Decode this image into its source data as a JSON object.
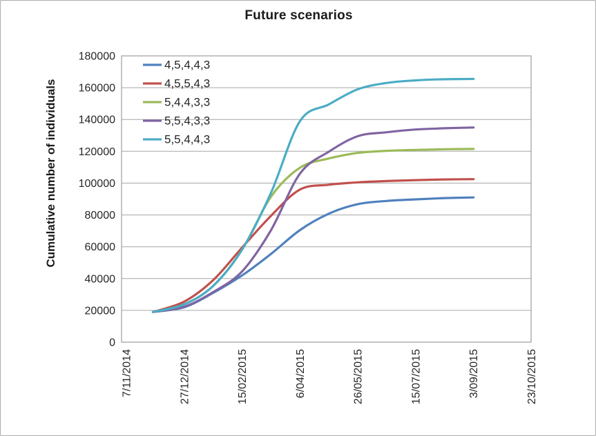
{
  "chart_data": {
    "type": "line",
    "title": "Future scenarios",
    "xlabel": "",
    "ylabel": "Cumulative number of individuals",
    "grid": true,
    "legend_position": "top-left-inside",
    "ylim": [
      0,
      180000
    ],
    "y_ticks": [
      0,
      20000,
      40000,
      60000,
      80000,
      100000,
      120000,
      140000,
      160000,
      180000
    ],
    "x_tick_labels": [
      "7/11/2014",
      "27/12/2014",
      "15/02/2015",
      "6/04/2015",
      "26/05/2015",
      "15/07/2015",
      "3/09/2015",
      "23/10/2015"
    ],
    "x_tick_days": [
      0,
      50,
      100,
      150,
      200,
      250,
      300,
      350
    ],
    "x_unit": "days since 7/11/2014 (ticks every 50 days)",
    "sample_days": [
      23,
      50,
      75,
      100,
      125,
      150,
      175,
      200,
      225,
      250,
      275,
      300
    ],
    "series": [
      {
        "name": "4,5,4,4,3",
        "color": "#4F81BD",
        "values": [
          19000,
          22000,
          31000,
          42000,
          55500,
          70500,
          80800,
          86800,
          88800,
          89800,
          90600,
          91000
        ]
      },
      {
        "name": "4,5,5,4,3",
        "color": "#C0504D",
        "values": [
          19000,
          25500,
          39000,
          59500,
          79500,
          96000,
          99000,
          100500,
          101300,
          101900,
          102300,
          102500
        ]
      },
      {
        "name": "5,4,4,3,3",
        "color": "#9BBB59",
        "values": [
          19000,
          23800,
          35400,
          58200,
          91500,
          109700,
          115500,
          119000,
          120300,
          120900,
          121300,
          121500
        ]
      },
      {
        "name": "5,5,4,3,3",
        "color": "#8064A2",
        "values": [
          19000,
          22300,
          31500,
          44500,
          70500,
          106000,
          119800,
          129500,
          132000,
          133700,
          134500,
          135000
        ]
      },
      {
        "name": "5,5,4,4,3",
        "color": "#4BACC6",
        "values": [
          19000,
          23800,
          35400,
          58200,
          94000,
          139000,
          149500,
          159000,
          163000,
          164600,
          165300,
          165500
        ]
      }
    ],
    "colors": {
      "axis": "#9d9d9d",
      "gridline": "#a6a6a6",
      "text": "#262626",
      "background": "#ffffff"
    }
  }
}
